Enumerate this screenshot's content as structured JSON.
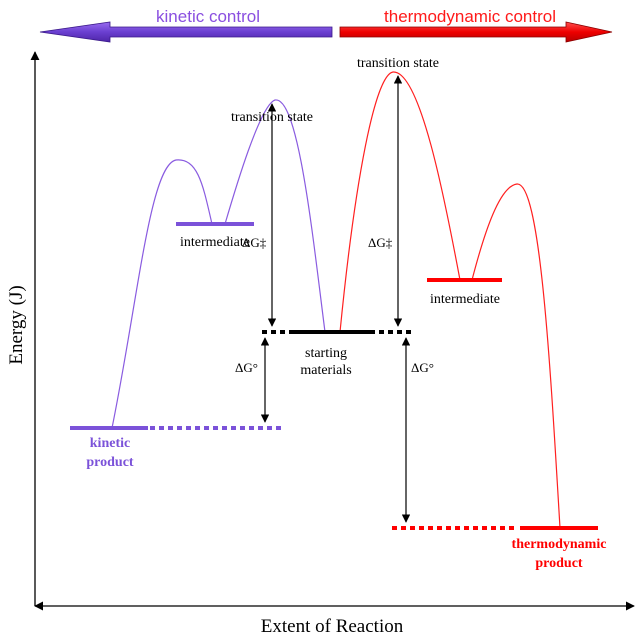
{
  "header": {
    "kinetic_label": "kinetic control",
    "thermo_label": "thermodynamic control"
  },
  "axes": {
    "y_label": "Energy (J)",
    "x_label": "Extent of Reaction"
  },
  "labels": {
    "transition_state_kinetic": "transition state",
    "transition_state_thermo": "transition state",
    "intermediate_kinetic": "intermediate",
    "intermediate_thermo": "intermediate",
    "starting_line1": "starting",
    "starting_line2": "materials",
    "kinetic_product_line1": "kinetic",
    "kinetic_product_line2": "product",
    "thermo_product_line1": "thermodynamic",
    "thermo_product_line2": "product",
    "dg_activation_kinetic": "ΔG‡",
    "dg_activation_thermo": "ΔG‡",
    "dg_standard_kinetic": "ΔG°",
    "dg_standard_thermo": "ΔG°"
  },
  "colors": {
    "kinetic": "#7b52d9",
    "thermo": "#ff0000",
    "kinetic_label_text": "#8a4fe0",
    "thermo_label_text": "#ff1a1a",
    "axis": "#000000"
  }
}
